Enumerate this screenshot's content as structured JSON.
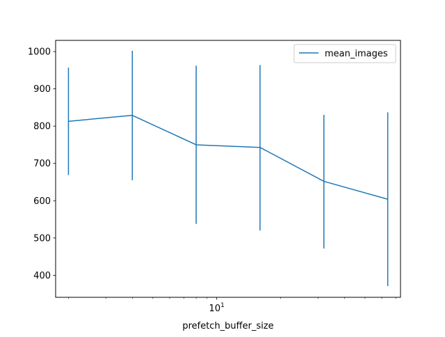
{
  "chart_data": {
    "type": "line",
    "title": "",
    "xlabel": "prefetch_buffer_size",
    "ylabel": "",
    "xscale": "log",
    "xlim": [
      1.74,
      73.5
    ],
    "ylim": [
      341,
      1030
    ],
    "grid": false,
    "legend": {
      "position": "top-right"
    },
    "x": [
      2,
      4,
      8,
      16,
      32,
      64
    ],
    "y_ticks": [
      400,
      500,
      600,
      700,
      800,
      900,
      1000
    ],
    "y_tick_labels": [
      "400",
      "500",
      "600",
      "700",
      "800",
      "900",
      "1000"
    ],
    "x_major_ticks": [
      10
    ],
    "x_major_tick_labels": [
      {
        "base": "10",
        "exponent": "1"
      }
    ],
    "x_minor_ticks": [
      2,
      3,
      4,
      5,
      6,
      7,
      8,
      9,
      20,
      30,
      40,
      50,
      60,
      70
    ],
    "series": [
      {
        "name": "mean_images",
        "color": "#1f77b4",
        "values": [
          813,
          829,
          750,
          743,
          652,
          604
        ],
        "error_lower": [
          669,
          655,
          538,
          520,
          472,
          371
        ],
        "error_upper": [
          957,
          1002,
          962,
          964,
          830,
          837
        ]
      }
    ]
  }
}
